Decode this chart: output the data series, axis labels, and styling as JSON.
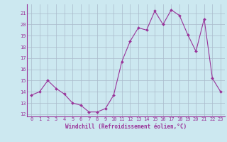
{
  "x": [
    0,
    1,
    2,
    3,
    4,
    5,
    6,
    7,
    8,
    9,
    10,
    11,
    12,
    13,
    14,
    15,
    16,
    17,
    18,
    19,
    20,
    21,
    22,
    23
  ],
  "y": [
    13.7,
    14.0,
    15.0,
    14.3,
    13.8,
    13.0,
    12.8,
    12.2,
    12.2,
    12.5,
    13.7,
    16.7,
    18.5,
    19.7,
    19.5,
    21.2,
    20.0,
    21.3,
    20.8,
    19.1,
    17.6,
    20.5,
    15.2,
    14.0
  ],
  "xlim": [
    -0.5,
    23.5
  ],
  "ylim": [
    11.8,
    21.8
  ],
  "yticks": [
    12,
    13,
    14,
    15,
    16,
    17,
    18,
    19,
    20,
    21
  ],
  "xticks": [
    0,
    1,
    2,
    3,
    4,
    5,
    6,
    7,
    8,
    9,
    10,
    11,
    12,
    13,
    14,
    15,
    16,
    17,
    18,
    19,
    20,
    21,
    22,
    23
  ],
  "xlabel": "Windchill (Refroidissement éolien,°C)",
  "line_color": "#993399",
  "marker_color": "#993399",
  "bg_color": "#cce8f0",
  "grid_color": "#aabbcc",
  "axis_color": "#993399",
  "tick_color": "#993399",
  "label_color": "#993399"
}
